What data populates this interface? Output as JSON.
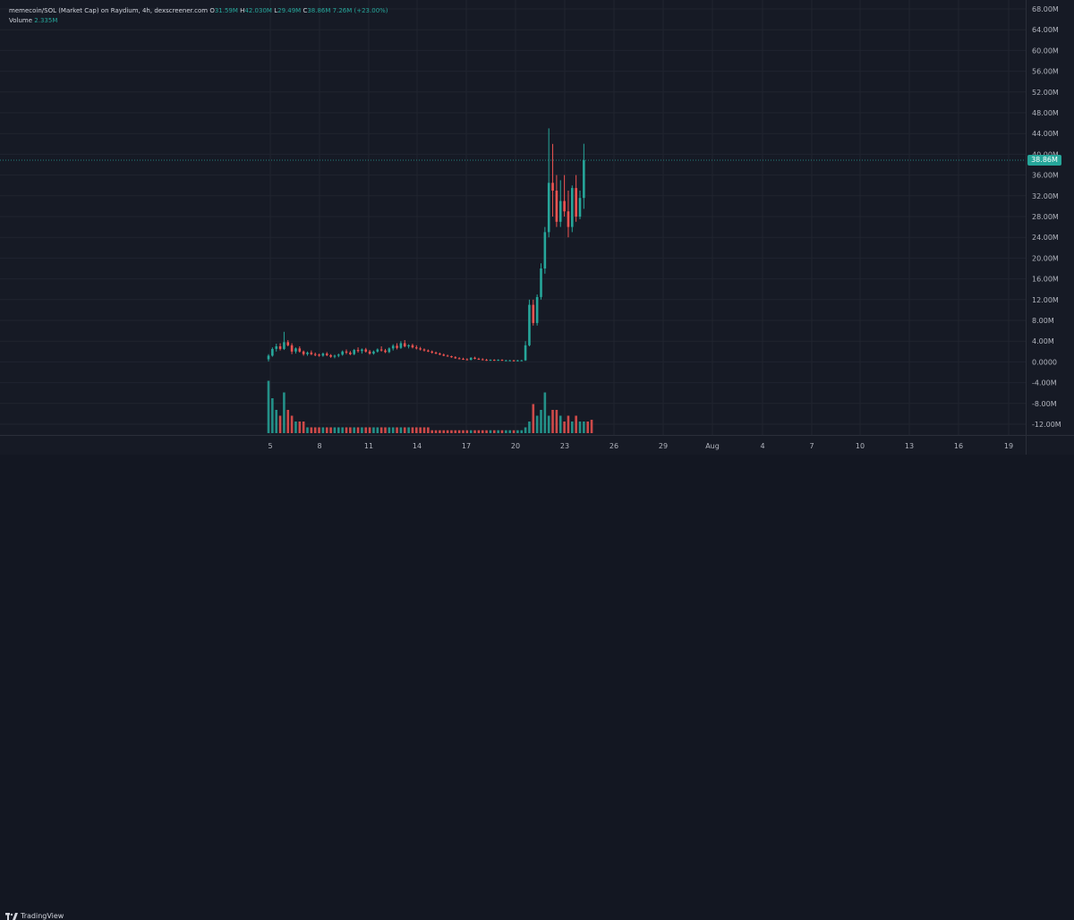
{
  "legend": {
    "title": "memecoin/SOL (Market Cap) on Raydium, 4h, dexscreener.com",
    "open_label": "O",
    "open": "31.59M",
    "high_label": "H",
    "high": "42.030M",
    "low_label": "L",
    "low": "29.49M",
    "close_label": "C",
    "close": "38.86M",
    "change": "7.26M (+23.00%)",
    "volume_label": "Volume",
    "volume": "2.335M"
  },
  "price_axis": {
    "ticks": [
      "68.00M",
      "64.00M",
      "60.00M",
      "56.00M",
      "52.00M",
      "48.00M",
      "44.00M",
      "40.00M",
      "36.00M",
      "32.00M",
      "28.00M",
      "24.00M",
      "20.00M",
      "16.00M",
      "12.00M",
      "8.00M",
      "4.00M",
      "0.0000",
      "-4.00M",
      "-8.00M",
      "-12.00M"
    ],
    "current_price": "38.86M",
    "current_price_color": "#26a69a"
  },
  "time_axis": {
    "ticks": [
      "5",
      "8",
      "11",
      "14",
      "17",
      "20",
      "23",
      "26",
      "29",
      "Aug",
      "4",
      "7",
      "10",
      "13",
      "16",
      "19"
    ]
  },
  "footer": {
    "brand": "TradingView"
  },
  "colors": {
    "up": "#26a69a",
    "down": "#ef5350",
    "background": "#161a25",
    "grid": "#20242f"
  },
  "chart_data": {
    "type": "candlestick",
    "interval": "4h",
    "ylim": [
      -12,
      68
    ],
    "y_unit": "M",
    "x_start_label": "5",
    "candles": [
      {
        "o": 0.5,
        "h": 1.5,
        "l": 0.1,
        "c": 1.2
      },
      {
        "o": 1.2,
        "h": 2.8,
        "l": 1.0,
        "c": 2.5
      },
      {
        "o": 2.5,
        "h": 3.5,
        "l": 2.0,
        "c": 3.0
      },
      {
        "o": 3.0,
        "h": 3.6,
        "l": 2.2,
        "c": 2.5
      },
      {
        "o": 2.5,
        "h": 5.8,
        "l": 2.3,
        "c": 3.8
      },
      {
        "o": 3.8,
        "h": 4.2,
        "l": 3.0,
        "c": 3.2
      },
      {
        "o": 3.2,
        "h": 3.6,
        "l": 1.5,
        "c": 2.0
      },
      {
        "o": 2.0,
        "h": 2.8,
        "l": 1.6,
        "c": 2.6
      },
      {
        "o": 2.6,
        "h": 3.0,
        "l": 1.8,
        "c": 2.0
      },
      {
        "o": 2.0,
        "h": 2.2,
        "l": 1.2,
        "c": 1.5
      },
      {
        "o": 1.5,
        "h": 2.0,
        "l": 1.2,
        "c": 1.8
      },
      {
        "o": 1.8,
        "h": 2.2,
        "l": 1.3,
        "c": 1.5
      },
      {
        "o": 1.5,
        "h": 1.8,
        "l": 1.1,
        "c": 1.4
      },
      {
        "o": 1.4,
        "h": 1.6,
        "l": 1.0,
        "c": 1.2
      },
      {
        "o": 1.2,
        "h": 1.8,
        "l": 1.0,
        "c": 1.6
      },
      {
        "o": 1.6,
        "h": 1.9,
        "l": 1.1,
        "c": 1.3
      },
      {
        "o": 1.3,
        "h": 1.5,
        "l": 0.8,
        "c": 1.0
      },
      {
        "o": 1.0,
        "h": 1.4,
        "l": 0.7,
        "c": 1.2
      },
      {
        "o": 1.2,
        "h": 1.6,
        "l": 0.9,
        "c": 1.4
      },
      {
        "o": 1.4,
        "h": 2.2,
        "l": 1.2,
        "c": 2.0
      },
      {
        "o": 2.0,
        "h": 2.4,
        "l": 1.5,
        "c": 1.8
      },
      {
        "o": 1.8,
        "h": 2.1,
        "l": 1.3,
        "c": 1.5
      },
      {
        "o": 1.5,
        "h": 2.5,
        "l": 1.3,
        "c": 2.3
      },
      {
        "o": 2.3,
        "h": 2.8,
        "l": 1.8,
        "c": 2.1
      },
      {
        "o": 2.1,
        "h": 2.6,
        "l": 1.6,
        "c": 2.4
      },
      {
        "o": 2.4,
        "h": 2.7,
        "l": 1.8,
        "c": 2.0
      },
      {
        "o": 2.0,
        "h": 2.3,
        "l": 1.4,
        "c": 1.6
      },
      {
        "o": 1.6,
        "h": 2.2,
        "l": 1.4,
        "c": 2.0
      },
      {
        "o": 2.0,
        "h": 2.6,
        "l": 1.8,
        "c": 2.4
      },
      {
        "o": 2.4,
        "h": 3.0,
        "l": 2.0,
        "c": 2.2
      },
      {
        "o": 2.2,
        "h": 2.5,
        "l": 1.7,
        "c": 1.9
      },
      {
        "o": 1.9,
        "h": 2.8,
        "l": 1.7,
        "c": 2.6
      },
      {
        "o": 2.6,
        "h": 3.4,
        "l": 2.2,
        "c": 3.1
      },
      {
        "o": 3.1,
        "h": 3.6,
        "l": 2.4,
        "c": 2.7
      },
      {
        "o": 2.7,
        "h": 4.0,
        "l": 2.5,
        "c": 3.6
      },
      {
        "o": 3.6,
        "h": 4.2,
        "l": 2.8,
        "c": 3.0
      },
      {
        "o": 3.0,
        "h": 3.4,
        "l": 2.6,
        "c": 3.2
      },
      {
        "o": 3.2,
        "h": 3.5,
        "l": 2.6,
        "c": 2.8
      },
      {
        "o": 2.8,
        "h": 3.2,
        "l": 2.4,
        "c": 2.6
      },
      {
        "o": 2.6,
        "h": 2.9,
        "l": 2.2,
        "c": 2.4
      },
      {
        "o": 2.4,
        "h": 2.6,
        "l": 2.0,
        "c": 2.2
      },
      {
        "o": 2.2,
        "h": 2.4,
        "l": 1.9,
        "c": 2.0
      },
      {
        "o": 2.0,
        "h": 2.2,
        "l": 1.6,
        "c": 1.8
      },
      {
        "o": 1.8,
        "h": 2.0,
        "l": 1.5,
        "c": 1.6
      },
      {
        "o": 1.6,
        "h": 1.8,
        "l": 1.3,
        "c": 1.4
      },
      {
        "o": 1.4,
        "h": 1.6,
        "l": 1.1,
        "c": 1.2
      },
      {
        "o": 1.2,
        "h": 1.4,
        "l": 1.0,
        "c": 1.1
      },
      {
        "o": 1.1,
        "h": 1.2,
        "l": 0.8,
        "c": 0.9
      },
      {
        "o": 0.9,
        "h": 1.1,
        "l": 0.6,
        "c": 0.7
      },
      {
        "o": 0.7,
        "h": 0.9,
        "l": 0.5,
        "c": 0.6
      },
      {
        "o": 0.6,
        "h": 0.8,
        "l": 0.4,
        "c": 0.5
      },
      {
        "o": 0.5,
        "h": 0.7,
        "l": 0.3,
        "c": 0.4
      },
      {
        "o": 0.4,
        "h": 0.9,
        "l": 0.3,
        "c": 0.8
      },
      {
        "o": 0.8,
        "h": 1.0,
        "l": 0.5,
        "c": 0.6
      },
      {
        "o": 0.6,
        "h": 0.8,
        "l": 0.4,
        "c": 0.5
      },
      {
        "o": 0.5,
        "h": 0.7,
        "l": 0.3,
        "c": 0.4
      },
      {
        "o": 0.4,
        "h": 0.6,
        "l": 0.2,
        "c": 0.3
      },
      {
        "o": 0.3,
        "h": 0.5,
        "l": 0.2,
        "c": 0.4
      },
      {
        "o": 0.4,
        "h": 0.5,
        "l": 0.2,
        "c": 0.3
      },
      {
        "o": 0.3,
        "h": 0.5,
        "l": 0.2,
        "c": 0.4
      },
      {
        "o": 0.4,
        "h": 0.5,
        "l": 0.2,
        "c": 0.3
      },
      {
        "o": 0.3,
        "h": 0.4,
        "l": 0.2,
        "c": 0.3
      },
      {
        "o": 0.3,
        "h": 0.4,
        "l": 0.2,
        "c": 0.3
      },
      {
        "o": 0.3,
        "h": 0.4,
        "l": 0.1,
        "c": 0.2
      },
      {
        "o": 0.2,
        "h": 0.4,
        "l": 0.1,
        "c": 0.3
      },
      {
        "o": 0.3,
        "h": 0.4,
        "l": 0.2,
        "c": 0.3
      },
      {
        "o": 0.3,
        "h": 4.0,
        "l": 0.2,
        "c": 3.2
      },
      {
        "o": 3.2,
        "h": 12.0,
        "l": 3.0,
        "c": 11.0
      },
      {
        "o": 11.0,
        "h": 12.0,
        "l": 7.0,
        "c": 7.5
      },
      {
        "o": 7.5,
        "h": 13.0,
        "l": 7.0,
        "c": 12.5
      },
      {
        "o": 12.5,
        "h": 19.0,
        "l": 12.0,
        "c": 18.0
      },
      {
        "o": 18.0,
        "h": 26.0,
        "l": 17.0,
        "c": 25.0
      },
      {
        "o": 25.0,
        "h": 45.0,
        "l": 24.0,
        "c": 34.5
      },
      {
        "o": 34.5,
        "h": 42.0,
        "l": 28.0,
        "c": 33.0
      },
      {
        "o": 33.0,
        "h": 36.0,
        "l": 26.0,
        "c": 27.0
      },
      {
        "o": 27.0,
        "h": 35.0,
        "l": 26.0,
        "c": 31.0
      },
      {
        "o": 31.0,
        "h": 36.0,
        "l": 28.0,
        "c": 29.0
      },
      {
        "o": 29.0,
        "h": 33.0,
        "l": 24.0,
        "c": 26.0
      },
      {
        "o": 26.0,
        "h": 34.0,
        "l": 25.0,
        "c": 33.5
      },
      {
        "o": 33.5,
        "h": 36.0,
        "l": 27.0,
        "c": 28.0
      },
      {
        "o": 28.0,
        "h": 33.0,
        "l": 27.5,
        "c": 31.59
      },
      {
        "o": 31.59,
        "h": 42.03,
        "l": 29.49,
        "c": 38.86
      }
    ],
    "volumes": [
      9,
      6,
      4,
      3,
      7,
      4,
      3,
      2,
      2,
      2,
      1,
      1,
      1,
      1,
      1,
      1,
      1,
      1,
      1,
      1,
      1,
      1,
      1,
      1,
      1,
      1,
      1,
      1,
      1,
      1,
      1,
      1,
      1,
      1,
      1,
      1,
      1,
      1,
      1,
      1,
      1,
      1,
      0.5,
      0.5,
      0.5,
      0.5,
      0.5,
      0.5,
      0.5,
      0.5,
      0.5,
      0.5,
      0.5,
      0.5,
      0.5,
      0.5,
      0.5,
      0.5,
      0.5,
      0.5,
      0.5,
      0.5,
      0.5,
      0.5,
      0.5,
      0.5,
      1,
      2,
      5,
      3,
      4,
      7,
      3,
      4,
      4,
      3,
      2,
      3,
      2,
      3,
      2,
      2,
      2,
      2.3
    ],
    "grid": true
  }
}
